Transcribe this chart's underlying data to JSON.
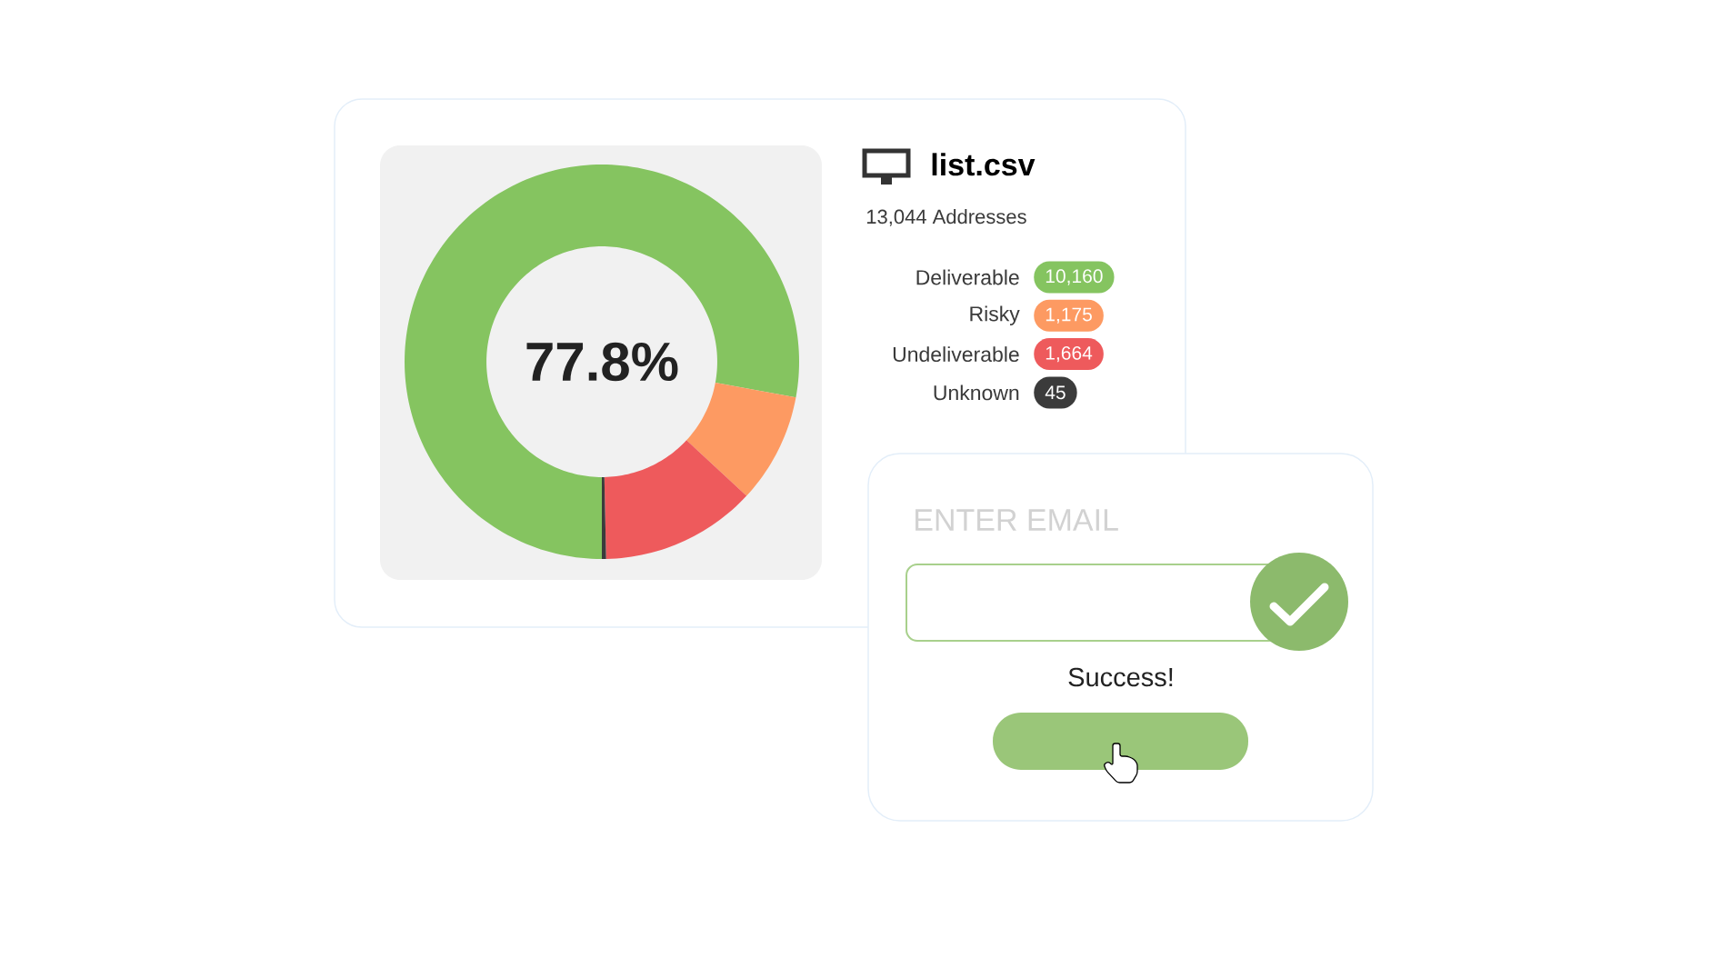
{
  "chart_data": [
    {
      "type": "donut",
      "title": "list.csv",
      "subtitle": "13,044 Addresses",
      "categories": [
        "Deliverable",
        "Risky",
        "Undeliverable",
        "Unknown"
      ],
      "values": [
        10160,
        1175,
        1664,
        45
      ],
      "colors": [
        "#85c460",
        "#fd9a62",
        "#ee5a5c",
        "#3b3b3b"
      ],
      "value_labels": [
        "10,160",
        "1,175",
        "1,664",
        "45"
      ],
      "annotations": [
        "77.8%"
      ],
      "legend": "right"
    },
    {
      "type": "other",
      "annotations": [
        "ENTER EMAIL",
        "Success!"
      ]
    }
  ]
}
